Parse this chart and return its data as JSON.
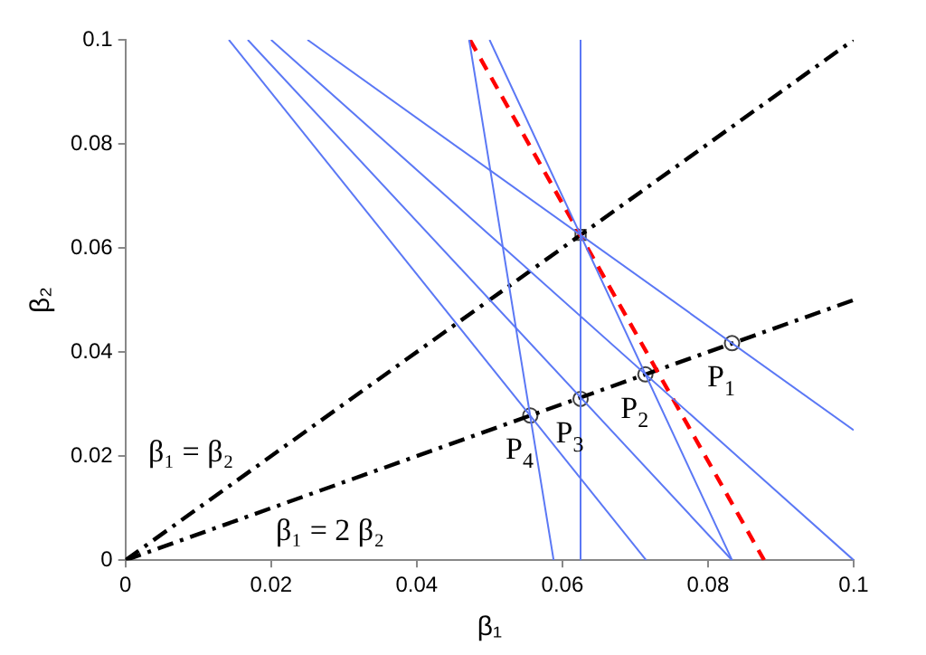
{
  "chart_data": {
    "type": "line",
    "xlabel": "β₁",
    "ylabel": "β₂",
    "xlim": [
      0,
      0.1
    ],
    "ylim": [
      0,
      0.1
    ],
    "xticks": [
      0,
      0.02,
      0.04,
      0.06,
      0.08,
      0.1
    ],
    "yticks": [
      0,
      0.02,
      0.04,
      0.06,
      0.08,
      0.1
    ],
    "grid": false,
    "legend": false,
    "series": [
      {
        "color": "#5b78f5",
        "x": [
          0.0142,
          0.0715
        ],
        "values": [
          0.1,
          0
        ],
        "line_style": "solid",
        "marker": "none"
      },
      {
        "color": "#5b78f5",
        "x": [
          0.0168,
          0.0833
        ],
        "values": [
          0.1,
          0
        ],
        "line_style": "solid",
        "marker": "none"
      },
      {
        "color": "#5b78f5",
        "x": [
          0.02,
          0.1
        ],
        "values": [
          0.1,
          0
        ],
        "line_style": "solid",
        "marker": "none"
      },
      {
        "color": "#5b78f5",
        "x": [
          0.025,
          0.1
        ],
        "values": [
          0.1,
          0.025
        ],
        "line_style": "solid",
        "marker": "none"
      },
      {
        "color": "#5b78f5",
        "x": [
          0.0472,
          0.0588
        ],
        "values": [
          0.1,
          0
        ],
        "line_style": "solid",
        "marker": "none"
      },
      {
        "color": "#5b78f5",
        "x": [
          0.05,
          0.0833
        ],
        "values": [
          0.1,
          0
        ],
        "line_style": "solid",
        "marker": "none"
      },
      {
        "color": "#5b78f5",
        "x": [
          0.0625,
          0.0625
        ],
        "values": [
          0.1,
          0
        ],
        "line_style": "solid",
        "marker": "none"
      },
      {
        "color": "#ff0000",
        "x": [
          0.0473,
          0.0877
        ],
        "values": [
          0.1,
          0
        ],
        "line_style": "dashed",
        "marker": "none"
      },
      {
        "color": "#000000",
        "x": [
          0,
          0.1
        ],
        "values": [
          0,
          0.1
        ],
        "line_style": "dashdot",
        "marker": "none"
      },
      {
        "color": "#000000",
        "x": [
          0,
          0.1
        ],
        "values": [
          0,
          0.05
        ],
        "line_style": "dashdot",
        "marker": "none"
      },
      {
        "type": "scatter",
        "color": "#404040",
        "x": [
          0.0833,
          0.0714,
          0.0625,
          0.0556
        ],
        "values": [
          0.0417,
          0.0357,
          0.031,
          0.0278
        ],
        "marker": "circle"
      },
      {
        "type": "scatter",
        "color": "#404040",
        "x": [
          0.0625
        ],
        "values": [
          0.0625
        ],
        "marker": "square"
      }
    ],
    "annotations": [
      {
        "text": "P$_{1}$",
        "x": 0.0833,
        "y": 0.0417
      },
      {
        "text": "P$_{2}$",
        "x": 0.0714,
        "y": 0.0357
      },
      {
        "text": "P$_{3}$",
        "x": 0.0625,
        "y": 0.031
      },
      {
        "text": "P$_{4}$",
        "x": 0.0556,
        "y": 0.0278
      },
      "β₁ = β₂",
      "β₁ = 2 β₂"
    ]
  }
}
